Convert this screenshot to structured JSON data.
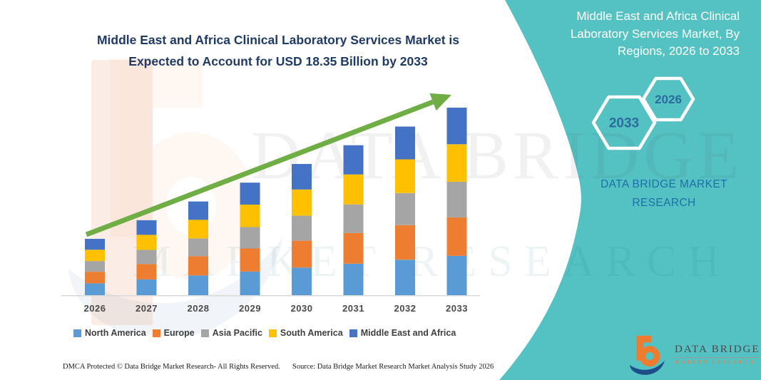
{
  "page": {
    "teal_color": "#54c1c3",
    "background_color": "#ffffff"
  },
  "header": {
    "title_lines": [
      "Middle East and Africa Clinical Laboratory Services Market is",
      "Expected to Account for USD 18.35 Billion by 2033"
    ],
    "title_color": "#203a66"
  },
  "side_panel": {
    "heading_lines": [
      "Middle East and Africa Clinical",
      "Laboratory Services Market, By",
      "Regions, 2026 to 2033"
    ],
    "hexagons": [
      {
        "label": "2033"
      },
      {
        "label": "2026"
      }
    ],
    "brand_text": "DATA BRIDGE MARKET RESEARCH",
    "hex_label_color": "#2a6d9c",
    "accent_text_color": "#1c6fa8"
  },
  "chart_data": {
    "type": "bar",
    "stacked": true,
    "title": "Middle East and Africa Clinical Laboratory Services Market, By Regions, 2026 to 2033",
    "unit": "USD Billion",
    "categories": [
      "2026",
      "2027",
      "2028",
      "2029",
      "2030",
      "2031",
      "2032",
      "2033"
    ],
    "series": [
      {
        "name": "North America",
        "color": "#5B9BD5",
        "values": [
          1.16,
          1.54,
          1.93,
          2.31,
          2.7,
          3.08,
          3.47,
          3.85
        ]
      },
      {
        "name": "Europe",
        "color": "#ED7D31",
        "values": [
          1.13,
          1.5,
          1.88,
          2.26,
          2.63,
          3.01,
          3.38,
          3.76
        ]
      },
      {
        "name": "Asia Pacific",
        "color": "#A5A5A5",
        "values": [
          1.05,
          1.39,
          1.74,
          2.09,
          2.44,
          2.79,
          3.14,
          3.49
        ]
      },
      {
        "name": "South America",
        "color": "#FFC000",
        "values": [
          1.1,
          1.47,
          1.83,
          2.2,
          2.57,
          2.93,
          3.3,
          3.67
        ]
      },
      {
        "name": "Middle East and Africa",
        "color": "#4472C4",
        "values": [
          1.07,
          1.43,
          1.79,
          2.15,
          2.5,
          2.86,
          3.21,
          3.58
        ]
      }
    ],
    "totals": [
      5.51,
      7.33,
      9.17,
      11.01,
      12.84,
      14.67,
      16.5,
      18.35
    ],
    "ylim": [
      0,
      18.35
    ],
    "grid": false,
    "legend_position": "bottom",
    "trend_arrow": true,
    "trend_arrow_color": "#6fae44",
    "axis_line_color": "#d9d9d9",
    "label_color": "#4a4a4a"
  },
  "watermarks": {
    "big_text": "DATA BRIDGE",
    "low_text": "MARKET RESEARCH"
  },
  "footer": {
    "dmca": "DMCA Protected © Data Bridge Market Research-  All Rights Reserved.",
    "source": "Source: Data Bridge Market Research  Market Analysis Study 2026"
  },
  "logo": {
    "name_top": "DATA BRIDGE",
    "name_bottom": "MARKET RESEARCH"
  }
}
